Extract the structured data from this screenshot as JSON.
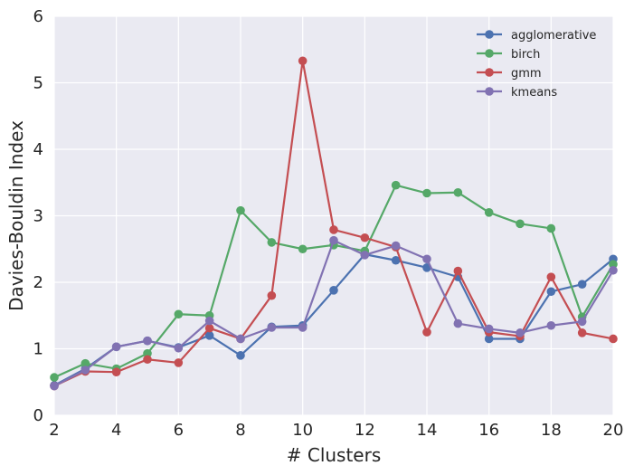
{
  "chart_data": {
    "type": "line",
    "title": "",
    "xlabel": "# Clusters",
    "ylabel": "Davies-Bouldin Index",
    "xlim": [
      2,
      20
    ],
    "ylim": [
      0,
      6
    ],
    "x_ticks": [
      2,
      4,
      6,
      8,
      10,
      12,
      14,
      16,
      18,
      20
    ],
    "y_ticks": [
      0,
      1,
      2,
      3,
      4,
      5,
      6
    ],
    "grid": true,
    "legend_position": "top-right",
    "x": [
      2,
      3,
      4,
      5,
      6,
      7,
      8,
      9,
      10,
      11,
      12,
      13,
      14,
      15,
      16,
      17,
      18,
      19,
      20
    ],
    "series": [
      {
        "name": "agglomerative",
        "color": "#4c72b0",
        "values": [
          0.45,
          0.7,
          1.03,
          1.12,
          1.02,
          1.2,
          0.9,
          1.33,
          1.35,
          1.88,
          2.42,
          2.33,
          2.22,
          2.08,
          1.15,
          1.15,
          1.86,
          1.97,
          2.35
        ]
      },
      {
        "name": "birch",
        "color": "#55a868",
        "values": [
          0.57,
          0.78,
          0.7,
          0.93,
          1.52,
          1.5,
          3.08,
          2.6,
          2.5,
          2.56,
          2.47,
          3.46,
          3.34,
          3.35,
          3.05,
          2.88,
          2.81,
          1.48,
          2.27
        ]
      },
      {
        "name": "gmm",
        "color": "#c44e52",
        "values": [
          0.44,
          0.66,
          0.65,
          0.84,
          0.79,
          1.31,
          1.15,
          1.8,
          5.33,
          2.79,
          2.67,
          2.53,
          1.25,
          2.17,
          1.25,
          1.19,
          2.08,
          1.24,
          1.15
        ]
      },
      {
        "name": "kmeans",
        "color": "#8172b2",
        "values": [
          0.44,
          0.68,
          1.03,
          1.12,
          1.01,
          1.42,
          1.15,
          1.32,
          1.32,
          2.63,
          2.41,
          2.55,
          2.35,
          1.38,
          1.3,
          1.24,
          1.35,
          1.41,
          2.18
        ]
      }
    ]
  }
}
